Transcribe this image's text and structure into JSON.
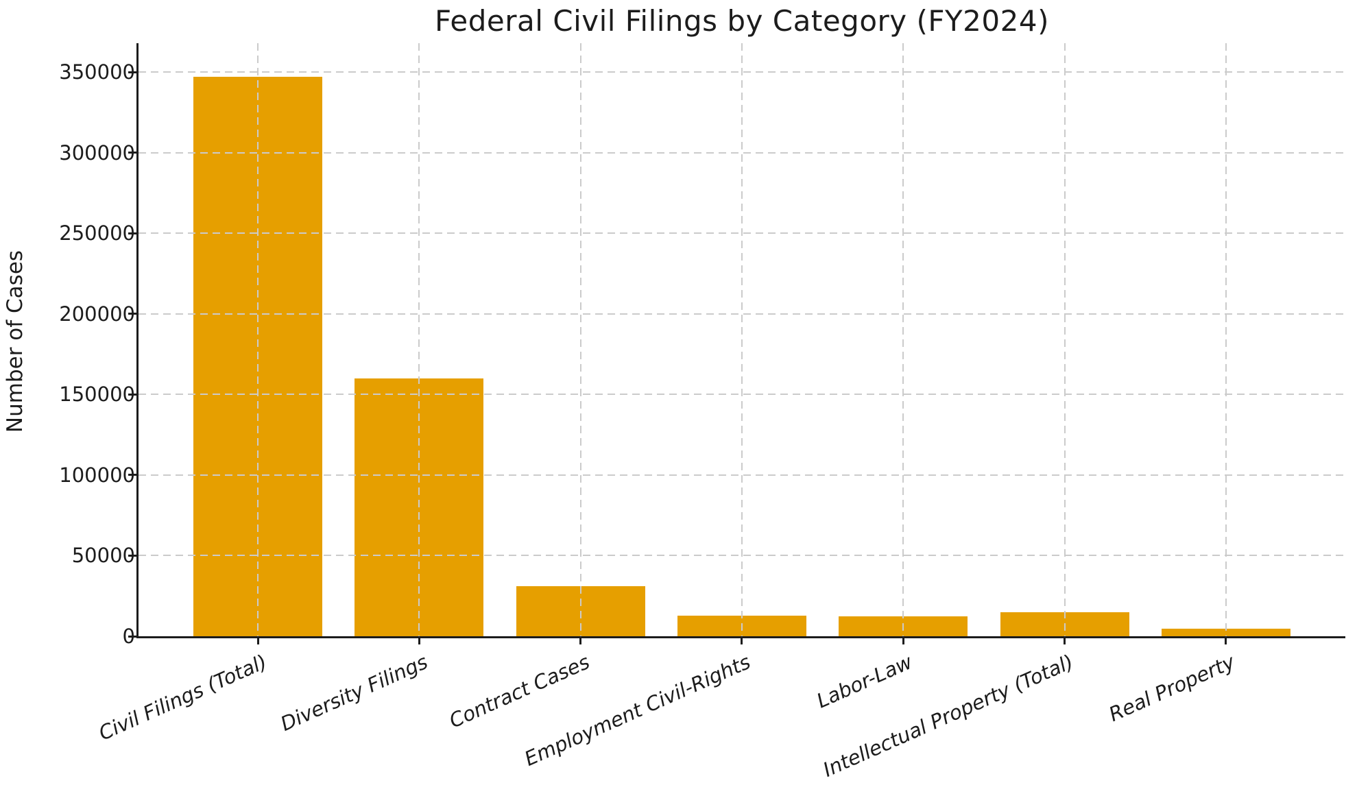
{
  "chart_data": {
    "type": "bar",
    "title": "Federal Civil Filings by Category (FY2024)",
    "xlabel": "",
    "ylabel": "Number of Cases",
    "categories": [
      "Civil Filings (Total)",
      "Diversity Filings",
      "Contract Cases",
      "Employment Civil-Rights",
      "Labor-Law",
      "Intellectual Property (Total)",
      "Real Property"
    ],
    "values": [
      347000,
      160000,
      31000,
      12800,
      12500,
      14800,
      4500
    ],
    "yticks": [
      0,
      50000,
      100000,
      150000,
      200000,
      250000,
      300000,
      350000
    ],
    "ylim": [
      0,
      367900
    ],
    "bar_color": "#E69F00",
    "grid": {
      "style": "dashed",
      "color": "#cbcbcb",
      "axes": "both",
      "above_bars": true
    },
    "legend": "none",
    "x_tick_label_style": "italic, rotated"
  }
}
